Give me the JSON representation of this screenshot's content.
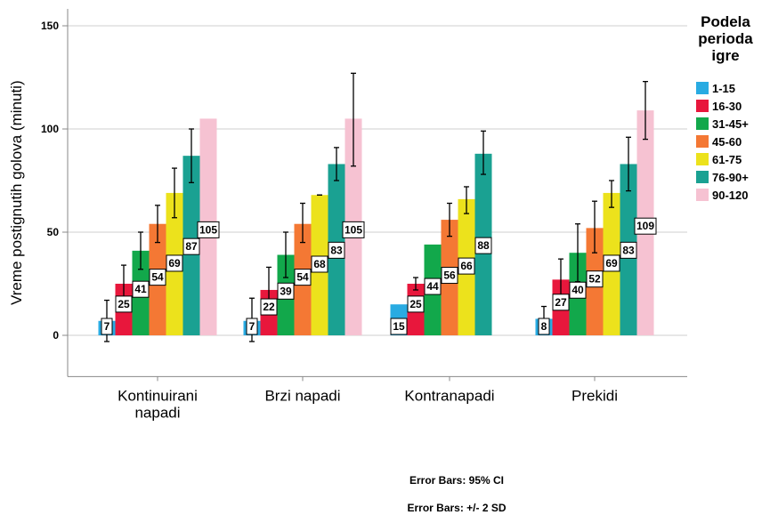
{
  "chart_data": {
    "type": "bar",
    "ylabel": "Vreme postignutih golova (minuti)",
    "xlabel": "",
    "ylim": [
      -20,
      160
    ],
    "yticks": [
      0,
      50,
      100,
      150
    ],
    "grid": true,
    "categories": [
      "Kontinuirani napadi",
      "Brzi napadi",
      "Kontranapadi",
      "Prekidi"
    ],
    "category_labels": [
      [
        "Kontinuirani",
        "napadi"
      ],
      [
        "Brzi napadi"
      ],
      [
        "Kontranapadi"
      ],
      [
        "Prekidi"
      ]
    ],
    "legend": {
      "title_lines": [
        "Podela",
        "perioda",
        "igre"
      ],
      "placement": "right"
    },
    "series": [
      {
        "name": "1-15",
        "color": "#29abe2",
        "values": [
          7,
          7,
          15,
          8
        ],
        "err_low": [
          -3,
          -3,
          null,
          2
        ],
        "err_high": [
          17,
          18,
          null,
          14
        ],
        "labels": [
          "7",
          "7",
          "15",
          "8"
        ]
      },
      {
        "name": "16-30",
        "color": "#e8173c",
        "values": [
          25,
          22,
          25,
          27
        ],
        "err_low": [
          16,
          12,
          22,
          17
        ],
        "err_high": [
          34,
          33,
          28,
          37
        ],
        "labels": [
          "25",
          "22",
          "25",
          "27"
        ]
      },
      {
        "name": "31-45+",
        "color": "#12a84b",
        "values": [
          41,
          39,
          44,
          40
        ],
        "err_low": [
          32,
          28,
          null,
          26
        ],
        "err_high": [
          50,
          50,
          null,
          54
        ],
        "labels": [
          "41",
          "39",
          "44",
          "40"
        ]
      },
      {
        "name": "45-60",
        "color": "#f47834",
        "values": [
          54,
          54,
          56,
          52
        ],
        "err_low": [
          45,
          45,
          48,
          40
        ],
        "err_high": [
          63,
          64,
          64,
          65
        ],
        "labels": [
          "54",
          "54",
          "56",
          "52"
        ]
      },
      {
        "name": "61-75",
        "color": "#ece21c",
        "values": [
          69,
          68,
          66,
          69
        ],
        "err_low": [
          57,
          68,
          59,
          62
        ],
        "err_high": [
          81,
          68,
          72,
          75
        ],
        "labels": [
          "69",
          "68",
          "66",
          "69"
        ]
      },
      {
        "name": "76-90+",
        "color": "#1aa192",
        "values": [
          87,
          83,
          88,
          83
        ],
        "err_low": [
          74,
          75,
          78,
          70
        ],
        "err_high": [
          100,
          91,
          99,
          96
        ],
        "labels": [
          "87",
          "83",
          "88",
          "83"
        ]
      },
      {
        "name": "90-120",
        "color": "#f6c2d2",
        "values": [
          105,
          105,
          null,
          109
        ],
        "err_low": [
          null,
          82,
          null,
          95
        ],
        "err_high": [
          null,
          127,
          null,
          123
        ],
        "labels": [
          "105",
          "105",
          "",
          "109"
        ]
      }
    ],
    "annotations": [
      "Error Bars: 95% CI",
      "Error Bars: +/- 2 SD"
    ]
  }
}
